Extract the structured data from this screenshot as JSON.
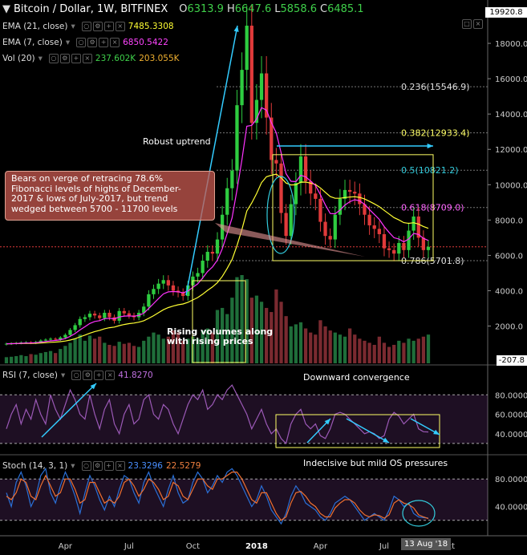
{
  "header": {
    "symbol": "Bitcoin / Dollar, 1W, BITFINEX",
    "open_label": "O",
    "open": "6313.9",
    "high_label": "H",
    "high": "6647.6",
    "low_label": "L",
    "low": "5858.6",
    "close_label": "C",
    "close": "6485.1",
    "last_price_tag": "19920.8"
  },
  "indicators": {
    "ema21_label": "EMA (21, close)",
    "ema21_value": "7485.3308",
    "ema7_label": "EMA (7, close)",
    "ema7_value": "6850.5422",
    "vol_label": "Vol (20)",
    "vol_value1": "237.602K",
    "vol_value2": "203.055K",
    "rsi_label": "RSI (7, close)",
    "rsi_value": "41.8270",
    "stoch_label": "Stoch (14, 3, 1)",
    "stoch_k": "23.3296",
    "stoch_d": "22.5279",
    "volume_scale_tag": "-207.8"
  },
  "annotations": {
    "uptrend": "Robust uptrend",
    "bears": [
      "Bears on verge of retracing 78.6%",
      "Fibonacci levels of highs of December-",
      "2017 & lows of July-2017, but trend",
      "wedged between 5700 - 11700 levels"
    ],
    "volumes": [
      "Rising volumes along",
      "with rising prices"
    ],
    "rsi_note": "Downward convergence",
    "stoch_note": "Indecisive but mild OS pressures",
    "date_tag": "13 Aug '18"
  },
  "colors": {
    "up": "#2ecc40",
    "down": "#e03a3a",
    "ema21": "#ffff33",
    "ema7": "#ff33ff",
    "fib": "#cccccc",
    "rsi": "#9b59b6",
    "stoch_k": "#2a6fd6",
    "stoch_d": "#f07030",
    "annot_box": "#ffff66",
    "arrow": "#33ccff"
  },
  "chart_data": [
    {
      "type": "candlestick",
      "name": "price",
      "y_ticks": [
        "18000.0",
        "16000.0",
        "14000.0",
        "12000.0",
        "10000.0",
        "8000.0",
        "6000.0",
        "4000.0",
        "2000.0"
      ],
      "ylim": [
        -200,
        20000
      ],
      "x_ticks": [
        "Apr",
        "Jul",
        "Oct",
        "2018",
        "Apr",
        "Jul",
        "Oct"
      ],
      "fibonacci": [
        {
          "label": "0.236(15546.9)",
          "value": 15546.9
        },
        {
          "label": "0.382(12933.4)",
          "value": 12933.4
        },
        {
          "label": "0.5(10821.2)",
          "value": 10821.2
        },
        {
          "label": "0.618(8709.0)",
          "value": 8709.0
        },
        {
          "label": "0.786(5701.8)",
          "value": 5701.8
        }
      ],
      "closes": [
        1000,
        1020,
        1040,
        1070,
        1080,
        1050,
        1100,
        1180,
        1230,
        1280,
        1250,
        1350,
        1500,
        1780,
        2050,
        2400,
        2500,
        2700,
        2600,
        2450,
        2750,
        2500,
        2300,
        2850,
        2720,
        2600,
        2500,
        2750,
        3100,
        3800,
        4100,
        4400,
        4600,
        4300,
        4000,
        3900,
        3700,
        4300,
        4800,
        5000,
        5700,
        6200,
        6100,
        6900,
        8300,
        9800,
        10800,
        14500,
        16500,
        19000,
        13500,
        14800,
        16300,
        13800,
        11400,
        11200,
        8400,
        7100,
        8900,
        10100,
        11600,
        10200,
        9500,
        9200,
        7900,
        7100,
        6900,
        8300,
        9200,
        9700,
        9600,
        9500,
        8900,
        8300,
        7700,
        7500,
        7200,
        6400,
        6300,
        6100,
        6700,
        6300,
        7400,
        8200,
        7000,
        6300,
        6485
      ],
      "volumes": [
        0.3,
        0.32,
        0.35,
        0.4,
        0.35,
        0.45,
        0.42,
        0.5,
        0.55,
        0.6,
        0.5,
        0.7,
        0.85,
        1.0,
        1.2,
        1.4,
        1.1,
        1.35,
        1.2,
        1.3,
        1.0,
        0.9,
        0.85,
        1.05,
        0.95,
        1.0,
        0.85,
        0.8,
        1.1,
        1.3,
        1.5,
        1.4,
        1.2,
        1.3,
        1.6,
        1.5,
        1.1,
        1.2,
        1.3,
        1.2,
        1.6,
        1.7,
        1.5,
        2.6,
        2.7,
        2.4,
        3.2,
        4.2,
        4.3,
        4.1,
        3.2,
        3.3,
        3.0,
        2.7,
        2.5,
        3.6,
        3.0,
        2.3,
        1.8,
        1.9,
        2.0,
        1.7,
        1.5,
        1.4,
        2.1,
        1.8,
        1.6,
        1.5,
        1.4,
        1.3,
        1.7,
        1.4,
        1.2,
        1.1,
        1.0,
        0.9,
        1.3,
        1.0,
        0.8,
        0.9,
        1.1,
        1.0,
        1.2,
        1.1,
        1.2,
        1.3,
        1.4
      ]
    },
    {
      "type": "line",
      "name": "rsi",
      "y_ticks": [
        "80.0000",
        "60.0000",
        "40.0000"
      ],
      "ylim": [
        20,
        100
      ],
      "values": [
        45,
        60,
        70,
        50,
        65,
        55,
        75,
        60,
        50,
        80,
        65,
        55,
        70,
        85,
        75,
        60,
        55,
        80,
        60,
        45,
        65,
        75,
        50,
        40,
        60,
        70,
        50,
        55,
        75,
        80,
        60,
        55,
        70,
        65,
        50,
        40,
        55,
        70,
        80,
        75,
        85,
        65,
        70,
        80,
        75,
        85,
        90,
        80,
        70,
        60,
        45,
        55,
        65,
        50,
        40,
        45,
        35,
        30,
        50,
        60,
        65,
        50,
        45,
        50,
        38,
        35,
        45,
        60,
        62,
        60,
        55,
        50,
        45,
        40,
        42,
        40,
        35,
        38,
        55,
        62,
        58,
        50,
        55,
        60,
        45,
        42,
        41.8
      ]
    },
    {
      "type": "line",
      "name": "stochastic",
      "y_ticks": [
        "80.0000",
        "40.0000"
      ],
      "ylim": [
        0,
        100
      ],
      "k": [
        60,
        40,
        75,
        90,
        70,
        40,
        55,
        85,
        95,
        60,
        45,
        70,
        90,
        75,
        55,
        30,
        60,
        85,
        70,
        50,
        35,
        55,
        40,
        65,
        85,
        80,
        60,
        45,
        75,
        90,
        70,
        55,
        40,
        65,
        85,
        60,
        45,
        50,
        75,
        90,
        80,
        60,
        70,
        85,
        75,
        90,
        95,
        85,
        70,
        55,
        40,
        50,
        70,
        55,
        35,
        25,
        15,
        30,
        55,
        70,
        60,
        45,
        40,
        35,
        25,
        20,
        30,
        45,
        50,
        55,
        50,
        40,
        30,
        20,
        25,
        30,
        25,
        20,
        35,
        55,
        50,
        40,
        45,
        30,
        25,
        24,
        23.3
      ],
      "d": [
        55,
        50,
        60,
        80,
        75,
        55,
        50,
        70,
        85,
        70,
        55,
        60,
        80,
        80,
        65,
        45,
        50,
        75,
        75,
        60,
        45,
        50,
        45,
        55,
        75,
        80,
        70,
        55,
        65,
        80,
        75,
        65,
        50,
        55,
        75,
        70,
        55,
        50,
        65,
        80,
        80,
        70,
        65,
        80,
        80,
        85,
        90,
        90,
        80,
        65,
        50,
        45,
        60,
        60,
        45,
        30,
        20,
        25,
        45,
        60,
        62,
        55,
        45,
        40,
        30,
        25,
        25,
        38,
        45,
        50,
        50,
        45,
        35,
        28,
        25,
        28,
        27,
        23,
        28,
        45,
        50,
        45,
        43,
        38,
        28,
        25,
        22.5
      ]
    }
  ]
}
